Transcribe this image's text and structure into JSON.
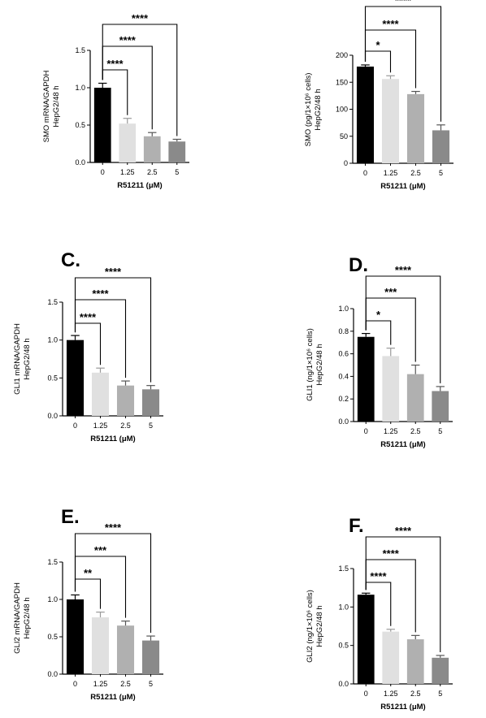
{
  "chart_data": [
    {
      "type": "bar",
      "panel_label": "",
      "categories": [
        "0",
        "1.25",
        "2.5",
        "5"
      ],
      "values": [
        1.0,
        0.52,
        0.35,
        0.28
      ],
      "errors": [
        0.06,
        0.07,
        0.05,
        0.03
      ],
      "ylim": [
        0,
        1.5
      ],
      "yticks": [
        "0.0",
        "0.5",
        "1.0",
        "1.5"
      ],
      "ylabel_lines": [
        "SMO mRNA/GAPDH",
        "HepG2/48 h"
      ],
      "xlabel": "R51211 (μM)",
      "colors": [
        "#000000",
        "#e0e0e0",
        "#b0b0b0",
        "#8a8a8a"
      ],
      "significance": [
        {
          "from": "0",
          "to": "1.25",
          "label": "****"
        },
        {
          "from": "0",
          "to": "2.5",
          "label": "****"
        },
        {
          "from": "0",
          "to": "5",
          "label": "****"
        }
      ]
    },
    {
      "type": "bar",
      "panel_label": "",
      "categories": [
        "0",
        "1.25",
        "2.5",
        "5"
      ],
      "values": [
        179,
        156,
        128,
        61
      ],
      "errors": [
        3,
        6,
        5,
        10
      ],
      "ylim": [
        0,
        200
      ],
      "yticks": [
        "0",
        "50",
        "100",
        "150",
        "200"
      ],
      "ylabel_lines": [
        "SMO (pg/1×10⁶ cells)",
        "HepG2/48 h"
      ],
      "xlabel": "R51211 (μM)",
      "colors": [
        "#000000",
        "#e0e0e0",
        "#b0b0b0",
        "#8a8a8a"
      ],
      "significance": [
        {
          "from": "0",
          "to": "1.25",
          "label": "*"
        },
        {
          "from": "0",
          "to": "2.5",
          "label": "****"
        },
        {
          "from": "0",
          "to": "5",
          "label": "****"
        }
      ]
    },
    {
      "type": "bar",
      "panel_label": "C.",
      "categories": [
        "0",
        "1.25",
        "2.5",
        "5"
      ],
      "values": [
        1.0,
        0.57,
        0.4,
        0.35
      ],
      "errors": [
        0.06,
        0.06,
        0.06,
        0.05
      ],
      "ylim": [
        0,
        1.5
      ],
      "yticks": [
        "0.0",
        "0.5",
        "1.0",
        "1.5"
      ],
      "ylabel_lines": [
        "GLI1 mRNA/GAPDH",
        "HepG2/48 h"
      ],
      "xlabel": "R51211 (μM)",
      "colors": [
        "#000000",
        "#e0e0e0",
        "#b0b0b0",
        "#8a8a8a"
      ],
      "significance": [
        {
          "from": "0",
          "to": "1.25",
          "label": "****"
        },
        {
          "from": "0",
          "to": "2.5",
          "label": "****"
        },
        {
          "from": "0",
          "to": "5",
          "label": "****"
        }
      ]
    },
    {
      "type": "bar",
      "panel_label": "D.",
      "categories": [
        "0",
        "1.25",
        "2.5",
        "5"
      ],
      "values": [
        0.75,
        0.58,
        0.42,
        0.27
      ],
      "errors": [
        0.03,
        0.07,
        0.08,
        0.04
      ],
      "ylim": [
        0,
        1.0
      ],
      "yticks": [
        "0.0",
        "0.2",
        "0.4",
        "0.6",
        "0.8",
        "1.0"
      ],
      "ylabel_lines": [
        "GLI1 (ng/1×10⁶ cells)",
        "HepG2/48 h"
      ],
      "xlabel": "R51211 (μM)",
      "colors": [
        "#000000",
        "#e0e0e0",
        "#b0b0b0",
        "#8a8a8a"
      ],
      "significance": [
        {
          "from": "0",
          "to": "1.25",
          "label": "*"
        },
        {
          "from": "0",
          "to": "2.5",
          "label": "***"
        },
        {
          "from": "0",
          "to": "5",
          "label": "****"
        }
      ]
    },
    {
      "type": "bar",
      "panel_label": "E.",
      "categories": [
        "0",
        "1.25",
        "2.5",
        "5"
      ],
      "values": [
        1.0,
        0.76,
        0.65,
        0.45
      ],
      "errors": [
        0.06,
        0.07,
        0.06,
        0.06
      ],
      "ylim": [
        0,
        1.5
      ],
      "yticks": [
        "0.0",
        "0.5",
        "1.0",
        "1.5"
      ],
      "ylabel_lines": [
        "GLI2 mRNA/GAPDH",
        "HepG2/48 h"
      ],
      "xlabel": "R51211 (μM)",
      "colors": [
        "#000000",
        "#e0e0e0",
        "#b0b0b0",
        "#8a8a8a"
      ],
      "significance": [
        {
          "from": "0",
          "to": "1.25",
          "label": "**"
        },
        {
          "from": "0",
          "to": "2.5",
          "label": "***"
        },
        {
          "from": "0",
          "to": "5",
          "label": "****"
        }
      ]
    },
    {
      "type": "bar",
      "panel_label": "F.",
      "categories": [
        "0",
        "1.25",
        "2.5",
        "5"
      ],
      "values": [
        1.16,
        0.68,
        0.58,
        0.34
      ],
      "errors": [
        0.02,
        0.03,
        0.05,
        0.03
      ],
      "ylim": [
        0,
        1.5
      ],
      "yticks": [
        "0.0",
        "0.5",
        "1.0",
        "1.5"
      ],
      "ylabel_lines": [
        "GLI2 (ng/1×10⁶ cells)",
        "HepG2/48 h"
      ],
      "xlabel": "R51211 (μM)",
      "colors": [
        "#000000",
        "#e0e0e0",
        "#b0b0b0",
        "#8a8a8a"
      ],
      "significance": [
        {
          "from": "0",
          "to": "1.25",
          "label": "****"
        },
        {
          "from": "0",
          "to": "2.5",
          "label": "****"
        },
        {
          "from": "0",
          "to": "5",
          "label": "****"
        }
      ]
    }
  ]
}
